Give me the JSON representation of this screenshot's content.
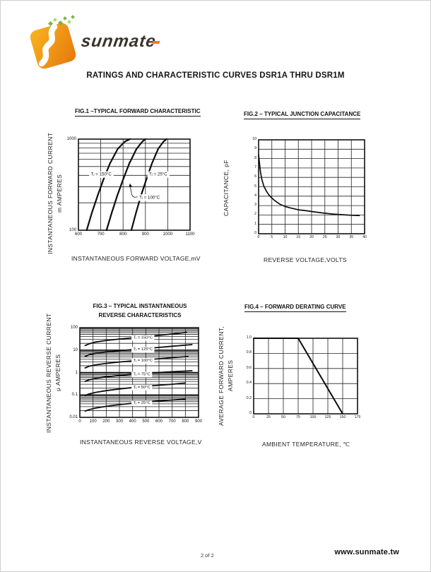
{
  "header": {
    "title": "RATINGS AND CHARACTERISTIC CURVES DSR1A THRU DSR1M"
  },
  "brand": {
    "name": "sunmate"
  },
  "footer": {
    "page": "2 of 2",
    "website": "www.sunmate.tw"
  },
  "colors": {
    "ink": "#1c1c1c",
    "orange1": "#f7b01e",
    "orange2": "#e8820e",
    "green1": "#7fb43d",
    "green2": "#b4d27e"
  },
  "chart_data": [
    {
      "type": "line",
      "title": "FIG.1 –TYPICAL FORWARD CHARACTERISTIC",
      "xlabel": "INSTANTANEOUS FORWARD VOLTAGE,mV",
      "ylabel_lines": [
        "INSTANTANEOUS FORWARD CURRENT",
        "m AMPERES"
      ],
      "x": {
        "scale": "linear",
        "min": 600,
        "max": 1100,
        "ticks": [
          {
            "v": 600,
            "t": "600"
          },
          {
            "v": 700,
            "t": "700"
          },
          {
            "v": 800,
            "t": "800"
          },
          {
            "v": 900,
            "t": "900"
          },
          {
            "v": 1000,
            "t": "1000"
          },
          {
            "v": 1100,
            "t": "1100"
          }
        ],
        "grid": [
          700,
          800,
          900,
          1000
        ]
      },
      "y": {
        "scale": "log",
        "min": 100,
        "max": 1000,
        "ticks": [
          {
            "v": 1000,
            "t": "1000"
          },
          {
            "v": 100,
            "t": "100"
          }
        ],
        "grid": [
          200,
          300,
          400,
          500,
          600,
          700,
          800,
          900
        ]
      },
      "lw": 2.2,
      "series": [
        {
          "name": "Tj = 150°C",
          "points": [
            [
              637,
              100
            ],
            [
              660,
              155
            ],
            [
              686,
              240
            ],
            [
              712,
              360
            ],
            [
              741,
              540
            ],
            [
              776,
              780
            ],
            [
              808,
              940
            ],
            [
              831,
              1000
            ]
          ]
        },
        {
          "name": "Tj = 100°C",
          "points": [
            [
              726,
              100
            ],
            [
              749,
              155
            ],
            [
              774,
              240
            ],
            [
              800,
              360
            ],
            [
              828,
              540
            ],
            [
              860,
              780
            ],
            [
              886,
              940
            ],
            [
              900,
              1000
            ]
          ]
        },
        {
          "name": "Tj = 25°C",
          "points": [
            [
              837,
              100
            ],
            [
              858,
              155
            ],
            [
              880,
              240
            ],
            [
              904,
              360
            ],
            [
              929,
              540
            ],
            [
              957,
              780
            ],
            [
              981,
              940
            ],
            [
              995,
              1000
            ]
          ]
        }
      ],
      "labels": [
        {
          "text": "Tⱼ = 150°C",
          "fx": 0.112,
          "fy": 0.385,
          "anchor": "start",
          "size": 6.2
        },
        {
          "text": "Tⱼ = 25°C",
          "fx": 0.633,
          "fy": 0.385,
          "anchor": "start",
          "size": 6.2
        },
        {
          "text": "Tⱼ = 100°C",
          "fx": 0.545,
          "fy": 0.638,
          "anchor": "start",
          "size": 6.2
        }
      ],
      "arrows": [
        {
          "x1f": 0.535,
          "y1f": 0.63,
          "x2f": 0.462,
          "y2f": 0.49
        }
      ]
    },
    {
      "type": "line",
      "title": "FIG.2 – TYPICAL JUNCTION CAPACITANCE",
      "xlabel": "REVERSE VOLTAGE,VOLTS",
      "ylabel_lines": [
        "CAPACITANCE, pF"
      ],
      "x": {
        "scale": "linear",
        "min": 0,
        "max": 40,
        "ticks": [
          {
            "v": 0,
            "t": "0"
          },
          {
            "v": 5,
            "t": "5"
          },
          {
            "v": 10,
            "t": "10"
          },
          {
            "v": 15,
            "t": "15"
          },
          {
            "v": 20,
            "t": "20"
          },
          {
            "v": 25,
            "t": "25"
          },
          {
            "v": 30,
            "t": "30"
          },
          {
            "v": 35,
            "t": "35"
          },
          {
            "v": 40,
            "t": "40"
          }
        ],
        "grid": [
          5,
          10,
          15,
          20,
          25,
          30,
          35
        ]
      },
      "y": {
        "scale": "linear",
        "min": 0,
        "max": 10,
        "ticks": [
          {
            "v": 10,
            "t": "10"
          },
          {
            "v": 9,
            "t": "9"
          },
          {
            "v": 8,
            "t": "8"
          },
          {
            "v": 7,
            "t": "7"
          },
          {
            "v": 6,
            "t": "6"
          },
          {
            "v": 5,
            "t": "5"
          },
          {
            "v": 4,
            "t": "4"
          },
          {
            "v": 3,
            "t": "3"
          },
          {
            "v": 2,
            "t": "2"
          },
          {
            "v": 1,
            "t": "1"
          },
          {
            "v": 0,
            "t": "0"
          }
        ],
        "grid": [
          1,
          2,
          3,
          4,
          5,
          6,
          7,
          8,
          9
        ]
      },
      "lw": 1.7,
      "series": [
        {
          "name": "Cj",
          "points": [
            [
              0,
              8.4
            ],
            [
              0.3,
              7.6
            ],
            [
              0.7,
              6.6
            ],
            [
              1.2,
              5.8
            ],
            [
              2,
              5.05
            ],
            [
              3,
              4.5
            ],
            [
              4,
              4.1
            ],
            [
              5,
              3.8
            ],
            [
              6,
              3.55
            ],
            [
              8,
              3.15
            ],
            [
              10,
              2.9
            ],
            [
              12,
              2.75
            ],
            [
              15,
              2.55
            ],
            [
              18,
              2.45
            ],
            [
              20,
              2.37
            ],
            [
              24,
              2.22
            ],
            [
              28,
              2.1
            ],
            [
              32,
              2.02
            ],
            [
              35,
              1.97
            ],
            [
              38,
              1.93
            ]
          ]
        }
      ],
      "labels": [],
      "arrows": []
    },
    {
      "type": "line",
      "title": "FIG.3 – TYPICAL INSTANTANEOUS",
      "title2": "REVERSE CHARACTERISTICS",
      "xlabel": "INSTANTANEOUS REVERSE VOLTAGE,V",
      "ylabel_lines": [
        "INSTANTANEOUS REVERSE CURRENT",
        "μ AMPERES"
      ],
      "x": {
        "scale": "linear",
        "min": 0,
        "max": 900,
        "ticks": [
          {
            "v": 0,
            "t": "0"
          },
          {
            "v": 100,
            "t": "100"
          },
          {
            "v": 200,
            "t": "200"
          },
          {
            "v": 300,
            "t": "300"
          },
          {
            "v": 400,
            "t": "400"
          },
          {
            "v": 500,
            "t": "500"
          },
          {
            "v": 600,
            "t": "600"
          },
          {
            "v": 700,
            "t": "700"
          },
          {
            "v": 800,
            "t": "800"
          },
          {
            "v": 900,
            "t": "900"
          }
        ],
        "grid": [
          100,
          200,
          300,
          400,
          500,
          600,
          700,
          800
        ]
      },
      "y": {
        "scale": "log",
        "min": 0.01,
        "max": 100,
        "ticks": [
          {
            "v": 100,
            "t": "100"
          },
          {
            "v": 10,
            "t": "10"
          },
          {
            "v": 1,
            "t": "1"
          },
          {
            "v": 0.1,
            "t": "0.1"
          },
          {
            "v": 0.01,
            "t": "0.01"
          }
        ],
        "grid": [
          0.02,
          0.03,
          0.04,
          0.05,
          0.06,
          0.07,
          0.08,
          0.09,
          0.2,
          0.3,
          0.4,
          0.5,
          0.6,
          0.7,
          0.8,
          0.9,
          2,
          3,
          4,
          5,
          6,
          7,
          8,
          9,
          20,
          30,
          40,
          50,
          60,
          70,
          80,
          90
        ],
        "grid_major": [
          0.1,
          1,
          10
        ]
      },
      "lw": 1.8,
      "series": [
        {
          "name": "Tj = 150°C",
          "points": [
            [
              40,
              16
            ],
            [
              70,
              19
            ],
            [
              120,
              23
            ],
            [
              200,
              27
            ],
            [
              300,
              31
            ],
            [
              420,
              36
            ],
            [
              560,
              43
            ],
            [
              700,
              52
            ],
            [
              810,
              62
            ]
          ]
        },
        {
          "name": "Tj = 125°C",
          "points": [
            [
              40,
              5.2
            ],
            [
              70,
              6.2
            ],
            [
              120,
              7.2
            ],
            [
              200,
              8.2
            ],
            [
              300,
              9.3
            ],
            [
              420,
              10.8
            ],
            [
              560,
              12.6
            ],
            [
              700,
              14.8
            ],
            [
              850,
              17.5
            ]
          ]
        },
        {
          "name": "Tj = 100°C",
          "points": [
            [
              40,
              1.6
            ],
            [
              70,
              1.9
            ],
            [
              120,
              2.2
            ],
            [
              200,
              2.55
            ],
            [
              300,
              2.95
            ],
            [
              420,
              3.4
            ],
            [
              560,
              3.95
            ],
            [
              700,
              4.6
            ],
            [
              820,
              5.2
            ]
          ]
        },
        {
          "name": "Tj = 75°C",
          "points": [
            [
              40,
              0.4
            ],
            [
              70,
              0.47
            ],
            [
              120,
              0.55
            ],
            [
              200,
              0.64
            ],
            [
              300,
              0.74
            ],
            [
              420,
              0.85
            ],
            [
              560,
              0.97
            ],
            [
              700,
              1.08
            ],
            [
              850,
              1.2
            ]
          ]
        },
        {
          "name": "Tj = 50°C",
          "points": [
            [
              40,
              0.095
            ],
            [
              70,
              0.11
            ],
            [
              120,
              0.13
            ],
            [
              200,
              0.155
            ],
            [
              300,
              0.185
            ],
            [
              420,
              0.22
            ],
            [
              560,
              0.26
            ],
            [
              700,
              0.3
            ],
            [
              800,
              0.34
            ]
          ]
        },
        {
          "name": "Tj = 25°C",
          "points": [
            [
              40,
              0.019
            ],
            [
              70,
              0.022
            ],
            [
              120,
              0.026
            ],
            [
              200,
              0.031
            ],
            [
              300,
              0.037
            ],
            [
              420,
              0.044
            ],
            [
              560,
              0.052
            ],
            [
              700,
              0.059
            ],
            [
              800,
              0.065
            ]
          ]
        }
      ],
      "labels": [
        {
          "text": "Tⱼ = 150°C",
          "fx": 0.45,
          "fy": 0.106,
          "anchor": "start",
          "size": 5.8
        },
        {
          "text": "Tⱼ = 125°C",
          "fx": 0.45,
          "fy": 0.238,
          "anchor": "start",
          "size": 5.8
        },
        {
          "text": "Tⱼ = 100°C",
          "fx": 0.45,
          "fy": 0.363,
          "anchor": "start",
          "size": 5.8
        },
        {
          "text": "Tⱼ = 75°C",
          "fx": 0.45,
          "fy": 0.515,
          "anchor": "start",
          "size": 5.8
        },
        {
          "text": "Tⱼ = 50°C",
          "fx": 0.45,
          "fy": 0.66,
          "anchor": "start",
          "size": 5.8
        },
        {
          "text": "Tⱼ = 25°C",
          "fx": 0.45,
          "fy": 0.835,
          "anchor": "start",
          "size": 5.8
        }
      ],
      "arrows": []
    },
    {
      "type": "line",
      "title": "FIG.4 – FORWARD DERATING CURVE",
      "xlabel": "AMBIENT TEMPERATURE, ℃",
      "ylabel_lines": [
        "AVERAGE FORWARD CURRENT,",
        "AMPERES"
      ],
      "x": {
        "scale": "linear",
        "min": 0,
        "max": 175,
        "ticks": [
          {
            "v": 0,
            "t": "0"
          },
          {
            "v": 25,
            "t": "25"
          },
          {
            "v": 50,
            "t": "50"
          },
          {
            "v": 75,
            "t": "75"
          },
          {
            "v": 100,
            "t": "100"
          },
          {
            "v": 125,
            "t": "125"
          },
          {
            "v": 150,
            "t": "150"
          },
          {
            "v": 175,
            "t": "175"
          }
        ],
        "grid": [
          25,
          50,
          75,
          100,
          125,
          150
        ]
      },
      "y": {
        "scale": "linear",
        "min": 0,
        "max": 1,
        "ticks": [
          {
            "v": 1,
            "t": "1.0"
          },
          {
            "v": 0.8,
            "t": "0.8"
          },
          {
            "v": 0.6,
            "t": "0.6"
          },
          {
            "v": 0.4,
            "t": "0.4"
          },
          {
            "v": 0.2,
            "t": "0.2"
          },
          {
            "v": 0,
            "t": "0"
          }
        ],
        "grid": [
          0.2,
          0.4,
          0.6,
          0.8
        ]
      },
      "lw": 2,
      "series": [
        {
          "name": "derating",
          "points": [
            [
              0,
              1
            ],
            [
              75,
              1
            ],
            [
              150,
              0
            ]
          ]
        }
      ],
      "labels": [],
      "arrows": []
    }
  ]
}
